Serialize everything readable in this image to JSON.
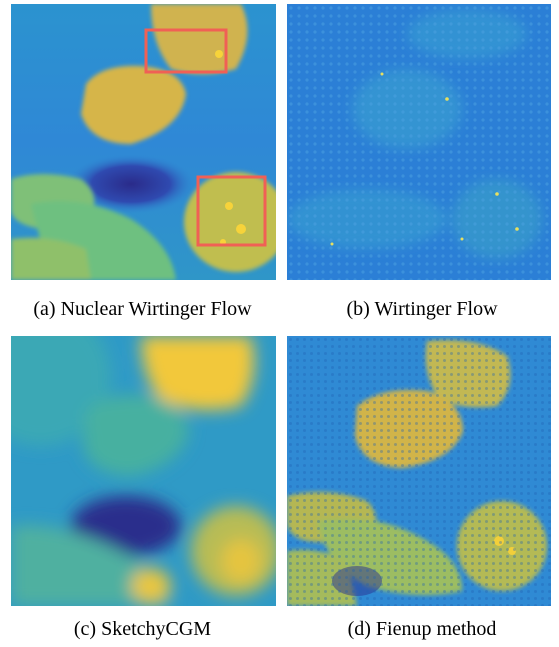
{
  "panels": [
    {
      "caption": "(a) Nuclear Wirtinger Flow"
    },
    {
      "caption": "(b) Wirtinger Flow"
    },
    {
      "caption": "(c) SketchyCGM"
    },
    {
      "caption": "(d) Fienup method"
    }
  ],
  "colors": {
    "background_blue": "#2f86d4",
    "blob_yellow": "#d9b94a",
    "bright_yellow": "#f7d33a",
    "dark_navy": "#2a2b8a",
    "highlight_box": "#f06055"
  }
}
